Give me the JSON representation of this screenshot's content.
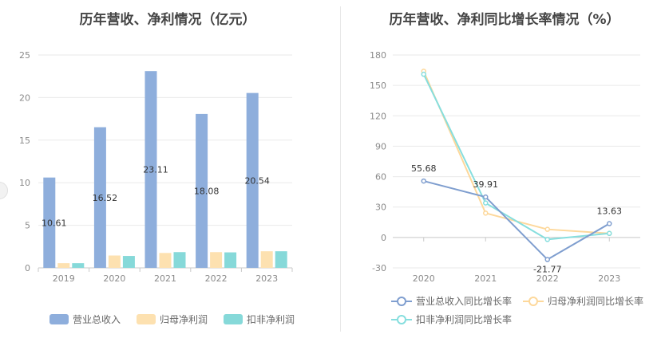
{
  "colors": {
    "revenue": "#8eaedc",
    "net_profit": "#fde1b0",
    "deducted_profit": "#86d9d9",
    "line_revenue": "#7f9ecf",
    "line_net_profit": "#fdd89b",
    "line_deducted_profit": "#86dede"
  },
  "chart_data": [
    {
      "type": "bar",
      "title": "历年营收、净利情况（亿元）",
      "categories": [
        "2019",
        "2020",
        "2021",
        "2022",
        "2023"
      ],
      "ylim": [
        0,
        25
      ],
      "yticks": [
        "0",
        "5",
        "10",
        "15",
        "20",
        "25"
      ],
      "series": [
        {
          "name": "营业总收入",
          "values": [
            10.61,
            16.52,
            23.11,
            18.08,
            20.54
          ],
          "labels": [
            "10.61",
            "16.52",
            "23.11",
            "18.08",
            "20.54"
          ]
        },
        {
          "name": "归母净利润",
          "values": [
            0.55,
            1.45,
            1.75,
            1.85,
            1.95
          ]
        },
        {
          "name": "扣非净利润",
          "values": [
            0.55,
            1.4,
            1.85,
            1.82,
            1.95
          ]
        }
      ],
      "legend": [
        "营业总收入",
        "归母净利润",
        "扣非净利润"
      ]
    },
    {
      "type": "line",
      "title": "历年营收、净利同比增长率情况（%）",
      "categories": [
        "2020",
        "2021",
        "2022",
        "2023"
      ],
      "ylim": [
        -30,
        180
      ],
      "yticks": [
        "-30",
        "0",
        "30",
        "60",
        "90",
        "120",
        "150",
        "180"
      ],
      "series": [
        {
          "name": "营业总收入同比增长率",
          "values": [
            55.68,
            39.91,
            -21.77,
            13.63
          ],
          "labels": [
            "55.68",
            "39.91",
            "-21.77",
            "13.63"
          ]
        },
        {
          "name": "归母净利润同比增长率",
          "values": [
            164,
            24,
            8,
            4
          ]
        },
        {
          "name": "扣非净利润同比增长率",
          "values": [
            161,
            34,
            -2,
            4
          ]
        }
      ],
      "legend": [
        "营业总收入同比增长率",
        "归母净利润同比增长率",
        "扣非净利润同比增长率"
      ]
    }
  ]
}
